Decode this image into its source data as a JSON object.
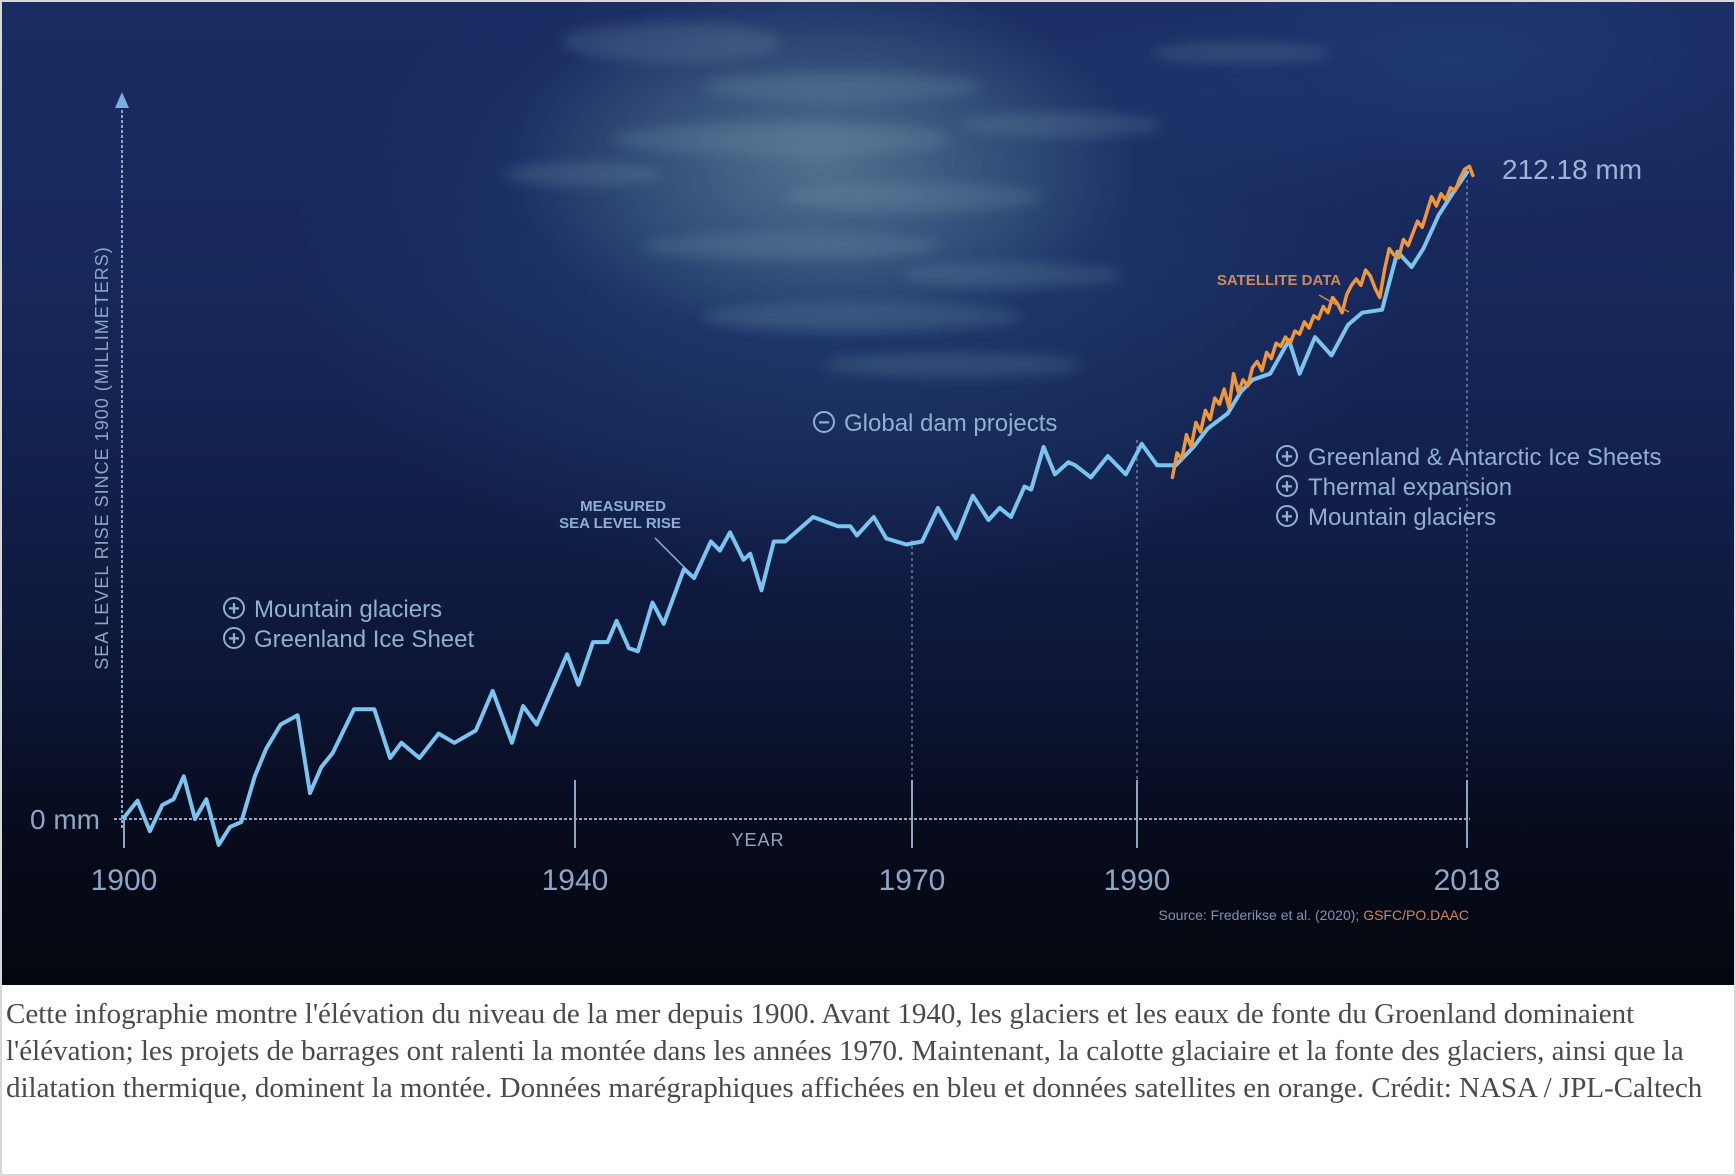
{
  "chart_data": {
    "type": "line",
    "title": "",
    "ylabel": "SEA LEVEL RISE SINCE 1900 (MILLIMETERS)",
    "xlabel": "YEAR",
    "y_zero_label": "0 mm",
    "x_ticks": [
      "1900",
      "1940",
      "1970",
      "1990",
      "2018"
    ],
    "xlim": [
      1900,
      2018
    ],
    "ylim": [
      -15,
      225
    ],
    "grid": false,
    "final_value_label": "212.18 mm",
    "series": [
      {
        "name": "MEASURED SEA LEVEL RISE",
        "color": "#7cc4f0",
        "points": [
          [
            1900.0,
            0.5
          ],
          [
            1901.2,
            6
          ],
          [
            1902.3,
            -4
          ],
          [
            1903.4,
            4.6
          ],
          [
            1904.4,
            6.5
          ],
          [
            1905.3,
            14
          ],
          [
            1906.3,
            0
          ],
          [
            1907.3,
            6.5
          ],
          [
            1908.4,
            -8.5
          ],
          [
            1909.4,
            -2.6
          ],
          [
            1910.4,
            -1
          ],
          [
            1911.6,
            14
          ],
          [
            1912.6,
            23
          ],
          [
            1913.9,
            31
          ],
          [
            1915.4,
            34
          ],
          [
            1916.5,
            8.5
          ],
          [
            1917.5,
            17
          ],
          [
            1918.5,
            21.6
          ],
          [
            1920.4,
            36
          ],
          [
            1922.2,
            36
          ],
          [
            1923.6,
            20
          ],
          [
            1924.6,
            25
          ],
          [
            1926.2,
            20
          ],
          [
            1927.9,
            28
          ],
          [
            1929.3,
            25
          ],
          [
            1931.2,
            29
          ],
          [
            1932.7,
            42
          ],
          [
            1934.4,
            25
          ],
          [
            1935.4,
            37
          ],
          [
            1936.6,
            31
          ],
          [
            1939.3,
            54
          ],
          [
            1940.3,
            44
          ],
          [
            1941.6,
            58
          ],
          [
            1942.9,
            58
          ],
          [
            1943.7,
            65
          ],
          [
            1944.8,
            56
          ],
          [
            1945.6,
            55
          ],
          [
            1946.9,
            71
          ],
          [
            1947.9,
            64
          ],
          [
            1949.7,
            82
          ],
          [
            1950.6,
            79
          ],
          [
            1952.1,
            91
          ],
          [
            1952.9,
            88
          ],
          [
            1953.8,
            94
          ],
          [
            1955.0,
            85
          ],
          [
            1955.6,
            87
          ],
          [
            1956.6,
            75
          ],
          [
            1957.7,
            91
          ],
          [
            1958.7,
            91
          ],
          [
            1961.2,
            99
          ],
          [
            1963.4,
            96
          ],
          [
            1964.5,
            96
          ],
          [
            1965.1,
            93
          ],
          [
            1966.6,
            99
          ],
          [
            1967.7,
            92
          ],
          [
            1969.5,
            90
          ],
          [
            1970.9,
            91
          ],
          [
            1972.3,
            102
          ],
          [
            1973.9,
            92
          ],
          [
            1975.4,
            106
          ],
          [
            1976.8,
            98
          ],
          [
            1977.8,
            102
          ],
          [
            1978.8,
            99
          ],
          [
            1980.0,
            109
          ],
          [
            1980.6,
            108
          ],
          [
            1981.7,
            122
          ],
          [
            1982.7,
            113
          ],
          [
            1983.9,
            117
          ],
          [
            1984.5,
            116
          ],
          [
            1985.9,
            112
          ],
          [
            1987.4,
            119
          ],
          [
            1989.0,
            113
          ],
          [
            1990.4,
            123
          ],
          [
            1991.7,
            116
          ],
          [
            1993.3,
            116
          ],
          [
            1994.8,
            122
          ],
          [
            1996.0,
            128
          ],
          [
            1997.7,
            133
          ],
          [
            1998.8,
            140
          ],
          [
            1999.8,
            144
          ],
          [
            2001.3,
            146
          ],
          [
            2002.9,
            157
          ],
          [
            2003.8,
            146
          ],
          [
            2005.1,
            158
          ],
          [
            2006.5,
            152
          ],
          [
            2007.9,
            162
          ],
          [
            2009.1,
            166
          ],
          [
            2010.8,
            167
          ],
          [
            2011.2,
            173
          ],
          [
            2012.1,
            186
          ],
          [
            2013.3,
            181
          ],
          [
            2014.3,
            187
          ],
          [
            2015.6,
            198
          ],
          [
            2017.1,
            207
          ],
          [
            2018.0,
            212
          ]
        ]
      },
      {
        "name": "SATELLITE DATA",
        "color": "#f0963c",
        "points": [
          [
            1993.0,
            112
          ],
          [
            1993.4,
            120
          ],
          [
            1993.8,
            118
          ],
          [
            1994.2,
            126
          ],
          [
            1994.6,
            122
          ],
          [
            1995.0,
            130
          ],
          [
            1995.4,
            127
          ],
          [
            1995.8,
            134
          ],
          [
            1996.2,
            131
          ],
          [
            1996.6,
            138
          ],
          [
            1997.0,
            136
          ],
          [
            1997.4,
            141
          ],
          [
            1997.8,
            135
          ],
          [
            1998.2,
            146
          ],
          [
            1998.6,
            140
          ],
          [
            1999.0,
            144
          ],
          [
            1999.4,
            142
          ],
          [
            1999.8,
            148
          ],
          [
            2000.2,
            150
          ],
          [
            2000.6,
            147
          ],
          [
            2001.0,
            153
          ],
          [
            2001.4,
            151
          ],
          [
            2001.8,
            156
          ],
          [
            2002.2,
            155
          ],
          [
            2002.6,
            158
          ],
          [
            2003.0,
            156
          ],
          [
            2003.4,
            160
          ],
          [
            2003.8,
            159
          ],
          [
            2004.2,
            163
          ],
          [
            2004.6,
            161
          ],
          [
            2005.0,
            165
          ],
          [
            2005.4,
            164
          ],
          [
            2005.8,
            168
          ],
          [
            2006.2,
            166
          ],
          [
            2006.6,
            171
          ],
          [
            2007.0,
            169
          ],
          [
            2007.4,
            166
          ],
          [
            2007.8,
            172
          ],
          [
            2008.2,
            175
          ],
          [
            2008.6,
            177
          ],
          [
            2009.0,
            175
          ],
          [
            2009.4,
            180
          ],
          [
            2009.8,
            178
          ],
          [
            2010.2,
            174
          ],
          [
            2010.6,
            171
          ],
          [
            2011.0,
            180
          ],
          [
            2011.4,
            187
          ],
          [
            2011.8,
            185
          ],
          [
            2012.2,
            184
          ],
          [
            2012.6,
            190
          ],
          [
            2013.0,
            188
          ],
          [
            2013.4,
            192
          ],
          [
            2013.8,
            196
          ],
          [
            2014.2,
            194
          ],
          [
            2014.6,
            199
          ],
          [
            2015.0,
            204
          ],
          [
            2015.4,
            201
          ],
          [
            2015.8,
            205
          ],
          [
            2016.2,
            203
          ],
          [
            2016.6,
            207
          ],
          [
            2017.0,
            206
          ],
          [
            2017.4,
            210
          ],
          [
            2017.8,
            213
          ],
          [
            2018.2,
            214
          ],
          [
            2018.5,
            211
          ]
        ]
      }
    ],
    "annotations": {
      "measured_label_lines": [
        "MEASURED",
        "SEA LEVEL RISE"
      ],
      "satellite_label": "SATELLITE DATA",
      "early_drivers": [
        "Mountain glaciers",
        "Greenland Ice Sheet"
      ],
      "dam_driver": "Global dam projects",
      "recent_drivers": [
        "Greenland & Antarctic Ice Sheets",
        "Thermal expansion",
        "Mountain glaciers"
      ],
      "plus_symbol": "+",
      "minus_symbol": "−"
    },
    "source_prefix": "Source: Frederikse et al. (2020); ",
    "source_highlight": "GSFC/PO.DAAC",
    "colors": {
      "measured": "#7cc4f0",
      "satellite": "#f0963c",
      "text": "#8fa6c4",
      "source_highlight": "#c9875a"
    }
  },
  "caption": "Cette infographie montre l'élévation du niveau de la mer depuis 1900. Avant 1940, les glaciers et les eaux de fonte du Groenland dominaient l'élévation; les projets de barrages ont ralenti la montée dans les années 1970. Maintenant, la calotte glaciaire et la fonte des glaciers, ainsi que la dilatation thermique, dominent la montée. Données marégraphiques affichées en bleu et données satellites en orange. Crédit: NASA / JPL-Caltech"
}
